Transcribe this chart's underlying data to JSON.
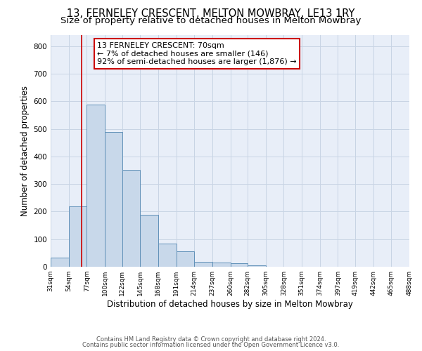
{
  "title": "13, FERNELEY CRESCENT, MELTON MOWBRAY, LE13 1RY",
  "subtitle": "Size of property relative to detached houses in Melton Mowbray",
  "xlabel": "Distribution of detached houses by size in Melton Mowbray",
  "ylabel": "Number of detached properties",
  "bar_values": [
    33,
    218,
    588,
    488,
    350,
    188,
    83,
    55,
    18,
    15,
    12,
    5,
    0,
    0,
    0,
    0,
    0,
    0,
    0,
    0
  ],
  "bin_edges": [
    31,
    54,
    77,
    100,
    122,
    145,
    168,
    191,
    214,
    237,
    260,
    282,
    305,
    328,
    351,
    374,
    397,
    419,
    442,
    465,
    488
  ],
  "tick_labels": [
    "31sqm",
    "54sqm",
    "77sqm",
    "100sqm",
    "122sqm",
    "145sqm",
    "168sqm",
    "191sqm",
    "214sqm",
    "237sqm",
    "260sqm",
    "282sqm",
    "305sqm",
    "328sqm",
    "351sqm",
    "374sqm",
    "397sqm",
    "419sqm",
    "442sqm",
    "465sqm",
    "488sqm"
  ],
  "bar_facecolor": "#c8d8ea",
  "bar_edgecolor": "#6090b8",
  "vline_x": 70,
  "vline_color": "#cc0000",
  "annotation_line1": "13 FERNELEY CRESCENT: 70sqm",
  "annotation_line2": "← 7% of detached houses are smaller (146)",
  "annotation_line3": "92% of semi-detached houses are larger (1,876) →",
  "annotation_box_facecolor": "white",
  "annotation_box_edgecolor": "#cc0000",
  "ylim": [
    0,
    840
  ],
  "yticks": [
    0,
    100,
    200,
    300,
    400,
    500,
    600,
    700,
    800
  ],
  "grid_color": "#c8d4e4",
  "background_color": "#e8eef8",
  "footer_line1": "Contains HM Land Registry data © Crown copyright and database right 2024.",
  "footer_line2": "Contains public sector information licensed under the Open Government Licence v3.0.",
  "title_fontsize": 10.5,
  "subtitle_fontsize": 9.5,
  "annotation_fontsize": 8.0
}
